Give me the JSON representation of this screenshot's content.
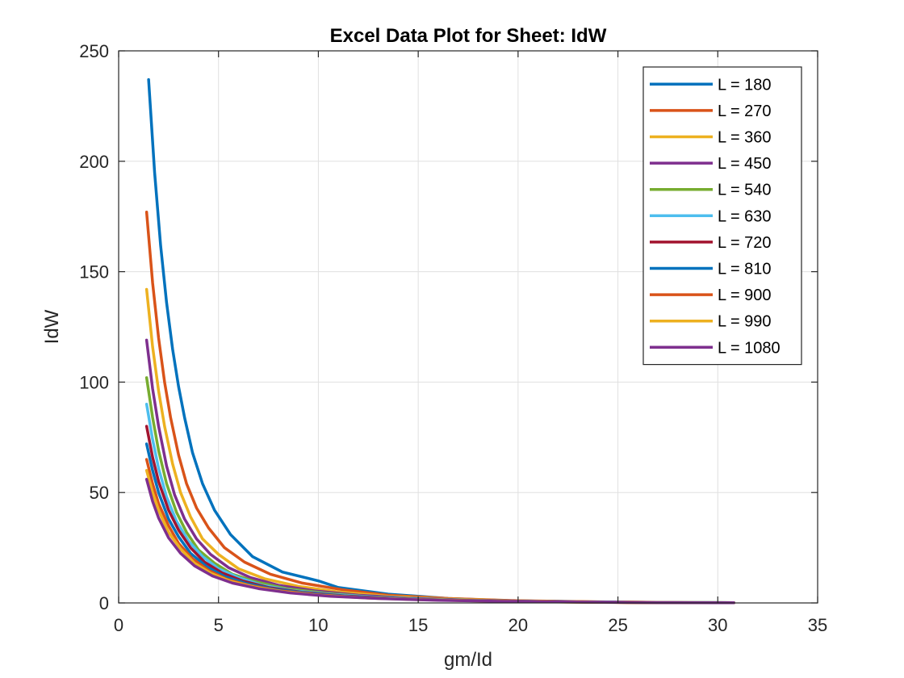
{
  "chart_data": {
    "type": "line",
    "title": "Excel Data Plot for Sheet: IdW",
    "xlabel": "gm/Id",
    "ylabel": "IdW",
    "xlim": [
      0,
      35
    ],
    "ylim": [
      0,
      250
    ],
    "xticks": [
      0,
      5,
      10,
      15,
      20,
      25,
      30,
      35
    ],
    "yticks": [
      0,
      50,
      100,
      150,
      200,
      250
    ],
    "grid": true,
    "legend_position": "top-right",
    "series": [
      {
        "name": "L = 180",
        "color": "#0072BD",
        "x": [
          1.5,
          1.8,
          2.1,
          2.4,
          2.7,
          3.0,
          3.3,
          3.7,
          4.2,
          4.8,
          5.6,
          6.7,
          8.2,
          10.0,
          11.0,
          13.5,
          16.5,
          19.5,
          23.5,
          27.5,
          30.8
        ],
        "y": [
          237,
          195,
          162,
          136,
          115,
          98,
          84,
          68,
          54,
          42,
          31,
          21,
          14,
          10,
          7,
          4,
          2,
          1,
          0.5,
          0.2,
          0.1
        ]
      },
      {
        "name": "L = 270",
        "color": "#D95319",
        "x": [
          1.4,
          1.7,
          2.0,
          2.3,
          2.6,
          3.0,
          3.4,
          3.9,
          4.5,
          5.3,
          6.3,
          7.6,
          9.2,
          11.2,
          13.5,
          16.5,
          20.0,
          24.0,
          28.0,
          30.8
        ],
        "y": [
          177,
          145,
          120,
          100,
          84,
          67,
          54,
          43,
          34,
          25,
          18.5,
          13,
          9,
          6,
          3.5,
          2,
          1,
          0.5,
          0.2,
          0.1
        ]
      },
      {
        "name": "L = 360",
        "color": "#EDB120",
        "x": [
          1.4,
          1.7,
          2.0,
          2.3,
          2.7,
          3.1,
          3.6,
          4.2,
          5.0,
          6.0,
          7.3,
          9.0,
          11.0,
          13.5,
          16.5,
          20.0,
          24.0,
          28.0,
          30.8
        ],
        "y": [
          142,
          116,
          96,
          80,
          63,
          50,
          39,
          29,
          22,
          15.5,
          11,
          7.5,
          5,
          3,
          1.8,
          0.9,
          0.4,
          0.2,
          0.1
        ]
      },
      {
        "name": "L = 450",
        "color": "#7E2F8E",
        "x": [
          1.4,
          1.7,
          2.0,
          2.4,
          2.8,
          3.3,
          3.9,
          4.6,
          5.5,
          6.6,
          8.0,
          9.8,
          12.0,
          14.5,
          17.5,
          21.0,
          25.0,
          28.5,
          30.8
        ],
        "y": [
          119,
          97,
          80,
          62,
          49,
          38,
          29,
          22,
          16,
          11.5,
          8,
          5.5,
          3.5,
          2.2,
          1.3,
          0.7,
          0.3,
          0.1,
          0.1
        ]
      },
      {
        "name": "L = 540",
        "color": "#77AC30",
        "x": [
          1.4,
          1.7,
          2.0,
          2.4,
          2.9,
          3.4,
          4.0,
          4.8,
          5.7,
          6.9,
          8.4,
          10.3,
          12.6,
          15.3,
          18.5,
          22.0,
          26.0,
          30.8
        ],
        "y": [
          102,
          84,
          69,
          54,
          41,
          32,
          24,
          18,
          13,
          9.5,
          6.5,
          4.5,
          2.8,
          1.7,
          1.0,
          0.5,
          0.2,
          0.1
        ]
      },
      {
        "name": "L = 630",
        "color": "#4DBEEE",
        "x": [
          1.4,
          1.7,
          2.0,
          2.4,
          2.9,
          3.5,
          4.2,
          5.0,
          6.0,
          7.2,
          8.8,
          10.8,
          13.2,
          16.0,
          19.5,
          23.5,
          27.5,
          30.8
        ],
        "y": [
          90,
          74,
          61,
          48,
          37,
          28,
          21,
          15.5,
          11.5,
          8,
          5.5,
          3.8,
          2.4,
          1.5,
          0.8,
          0.4,
          0.2,
          0.1
        ]
      },
      {
        "name": "L = 720",
        "color": "#A2142F",
        "x": [
          1.4,
          1.7,
          2.0,
          2.5,
          3.0,
          3.6,
          4.3,
          5.2,
          6.2,
          7.5,
          9.2,
          11.3,
          13.8,
          16.8,
          20.5,
          24.5,
          28.5,
          30.8
        ],
        "y": [
          80,
          66,
          55,
          42,
          33,
          25,
          18.5,
          13.5,
          10,
          7,
          4.8,
          3.2,
          2,
          1.2,
          0.7,
          0.3,
          0.1,
          0.1
        ]
      },
      {
        "name": "L = 810",
        "color": "#0072BD",
        "x": [
          1.4,
          1.7,
          2.0,
          2.5,
          3.0,
          3.6,
          4.4,
          5.3,
          6.4,
          7.8,
          9.6,
          11.8,
          14.4,
          17.5,
          21.0,
          25.0,
          28.5,
          30.8
        ],
        "y": [
          72,
          60,
          50,
          38,
          30,
          22.5,
          16.5,
          12,
          8.8,
          6.2,
          4.2,
          2.8,
          1.8,
          1.1,
          0.6,
          0.3,
          0.1,
          0.1
        ]
      },
      {
        "name": "L = 900",
        "color": "#D95319",
        "x": [
          1.4,
          1.7,
          2.0,
          2.5,
          3.0,
          3.7,
          4.5,
          5.4,
          6.5,
          8.0,
          9.8,
          12.0,
          14.7,
          18.0,
          21.5,
          25.5,
          29.0,
          30.8
        ],
        "y": [
          65,
          54,
          45,
          35,
          27,
          20,
          14.8,
          10.8,
          8,
          5.6,
          3.8,
          2.5,
          1.6,
          1.0,
          0.5,
          0.2,
          0.1,
          0.1
        ]
      },
      {
        "name": "L = 990",
        "color": "#EDB120",
        "x": [
          1.4,
          1.7,
          2.0,
          2.5,
          3.1,
          3.8,
          4.6,
          5.6,
          6.8,
          8.3,
          10.2,
          12.5,
          15.3,
          18.6,
          22.3,
          26.3,
          29.5,
          30.8
        ],
        "y": [
          60,
          50,
          42,
          32,
          24.5,
          18,
          13.5,
          9.8,
          7.2,
          5,
          3.4,
          2.2,
          1.4,
          0.8,
          0.4,
          0.2,
          0.1,
          0.1
        ]
      },
      {
        "name": "L = 1080",
        "color": "#7E2F8E",
        "x": [
          1.4,
          1.7,
          2.0,
          2.5,
          3.1,
          3.8,
          4.7,
          5.7,
          7.0,
          8.6,
          10.6,
          13.0,
          16.0,
          19.5,
          23.3,
          27.0,
          30.0,
          30.8
        ],
        "y": [
          56,
          46,
          38.5,
          29.5,
          22.5,
          16.8,
          12.2,
          9,
          6.5,
          4.5,
          3,
          2,
          1.2,
          0.7,
          0.35,
          0.15,
          0.1,
          0.1
        ]
      }
    ]
  }
}
